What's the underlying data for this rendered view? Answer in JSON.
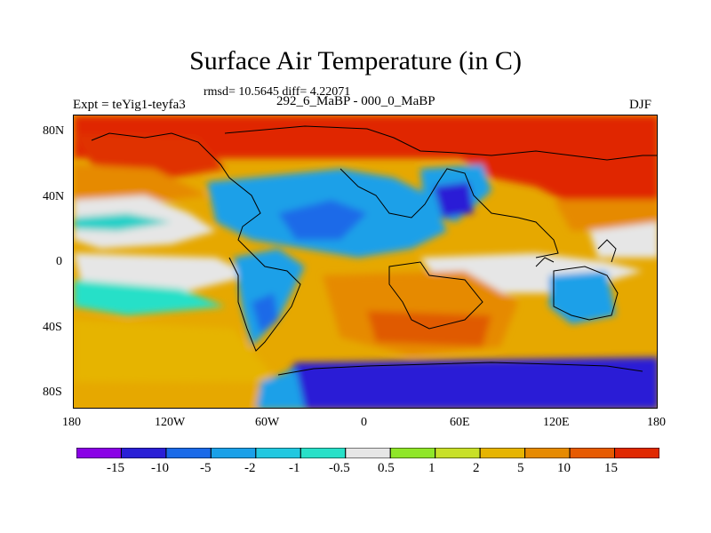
{
  "title": "Surface Air Temperature (in C)",
  "stats_text": "rmsd= 10.5645 diff= 4.22071",
  "experiment_label": "Expt = teYig1-teyfa3",
  "period_label": "292_6_MaBP - 000_0_MaBP",
  "season_label": "DJF",
  "axes": {
    "y_ticks": [
      "80N",
      "40N",
      "0",
      "40S",
      "80S"
    ],
    "x_ticks": [
      "180",
      "120W",
      "60W",
      "0",
      "60E",
      "120E",
      "180"
    ]
  },
  "colorbar": {
    "boundary_labels": [
      "-15",
      "-10",
      "-5",
      "-2",
      "-1",
      "-0.5",
      "0.5",
      "1",
      "2",
      "5",
      "10",
      "15"
    ],
    "colors": [
      "#8a00e6",
      "#2a1fd6",
      "#1a6ae8",
      "#1aa0e8",
      "#22c8e0",
      "#28e0c8",
      "#e6e6e6",
      "#8fe628",
      "#c8e028",
      "#e6b400",
      "#e68a00",
      "#e65a00",
      "#e02800"
    ]
  }
}
